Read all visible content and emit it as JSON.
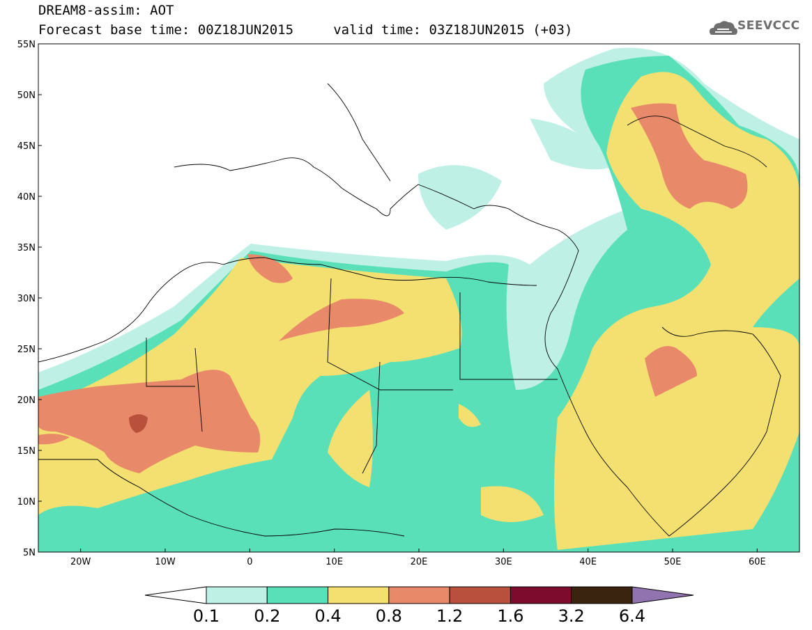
{
  "header": {
    "line1": "DREAM8-assim: AOT",
    "line2": "Forecast base time: 00Z18JUN2015     valid time: 03Z18JUN2015 (+03)"
  },
  "logo": {
    "text": "SEEVCCC",
    "icon": "cloud-icon"
  },
  "map": {
    "lat_labels": [
      "55N",
      "50N",
      "45N",
      "40N",
      "35N",
      "30N",
      "25N",
      "20N",
      "15N",
      "10N",
      "5N"
    ],
    "lon_labels": [
      "20W",
      "10W",
      "0",
      "10E",
      "20E",
      "30E",
      "40E",
      "50E",
      "60E"
    ]
  },
  "colorbar": {
    "colors": [
      "#ffffff",
      "#bff0e6",
      "#5ae0b8",
      "#f3e070",
      "#e8896a",
      "#b9503c",
      "#7d0b2b",
      "#3a2410",
      "#9173b0"
    ],
    "labels": [
      "0.1",
      "0.2",
      "0.4",
      "0.8",
      "1.2",
      "1.6",
      "3.2",
      "6.4"
    ]
  }
}
